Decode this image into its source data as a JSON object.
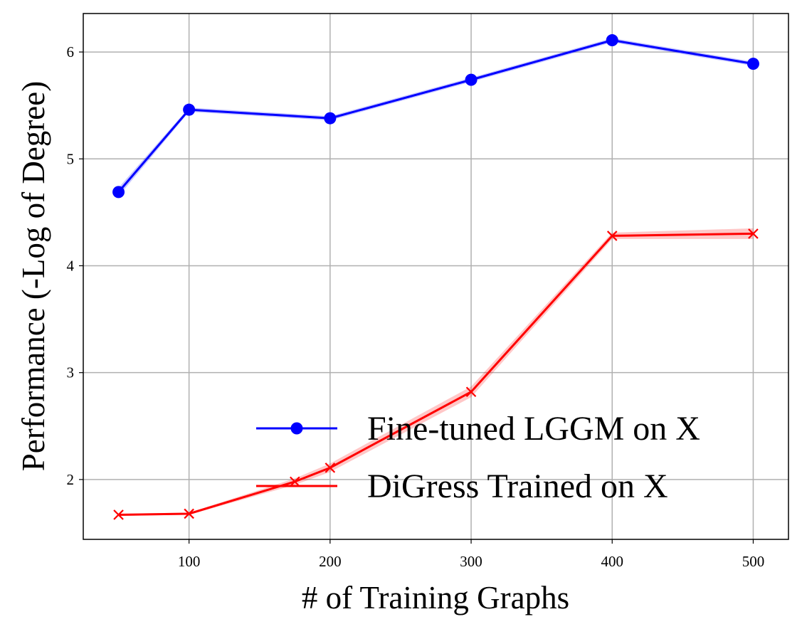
{
  "chart_data": {
    "type": "line",
    "title": "",
    "xlabel": "# of Training Graphs",
    "ylabel": "Performance (-Log of Degree)",
    "xlim": [
      25,
      525
    ],
    "ylim": [
      1.44,
      6.36
    ],
    "xticks": [
      100,
      200,
      300,
      400,
      500
    ],
    "yticks": [
      2,
      3,
      4,
      5,
      6
    ],
    "grid": true,
    "legend_position": "lower-right",
    "series": [
      {
        "name": "Fine-tuned LGGM on X",
        "color": "#0000ff",
        "marker": "circle",
        "x": [
          50,
          100,
          200,
          300,
          400,
          500
        ],
        "y": [
          4.69,
          5.46,
          5.38,
          5.74,
          6.11,
          5.89
        ],
        "band": [
          0.04,
          0.02,
          0.02,
          0.02,
          0.02,
          0.02
        ]
      },
      {
        "name": "DiGress Trained on X",
        "color": "#ff0000",
        "marker": "x",
        "x": [
          50,
          100,
          175,
          200,
          300,
          400,
          500
        ],
        "y": [
          1.67,
          1.68,
          1.98,
          2.11,
          2.82,
          4.28,
          4.3
        ],
        "band": [
          0.01,
          0.01,
          0.03,
          0.04,
          0.05,
          0.03,
          0.05
        ]
      }
    ]
  }
}
